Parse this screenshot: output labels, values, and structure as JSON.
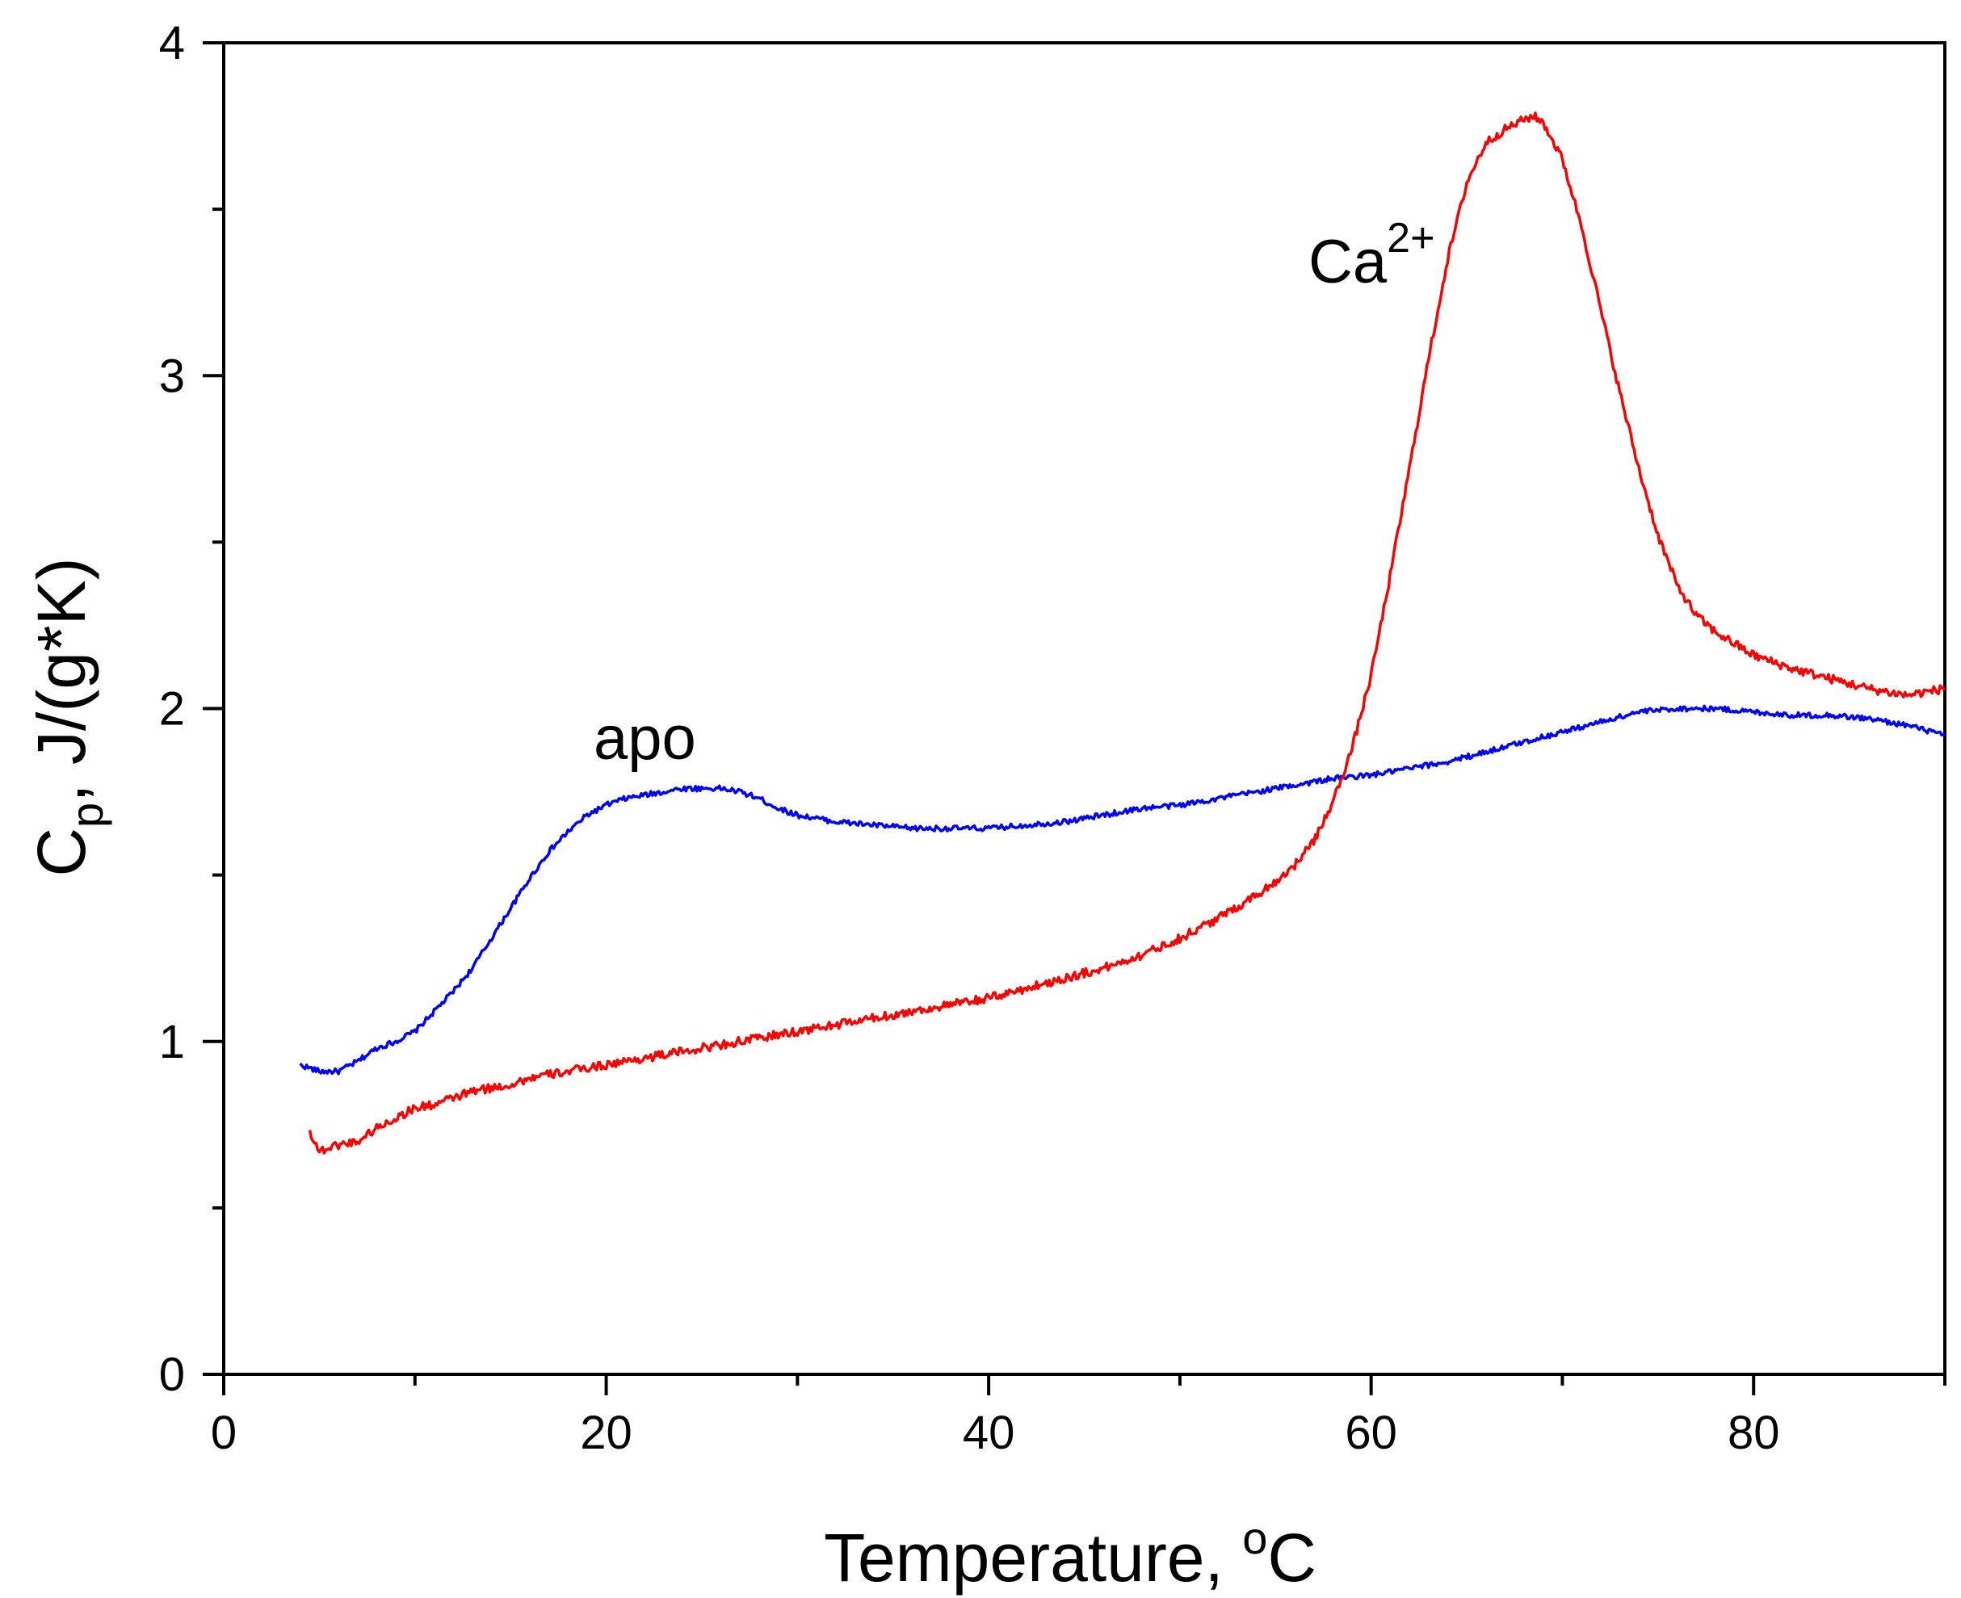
{
  "chart_data": {
    "type": "line",
    "xlabel": "Temperature, oC",
    "xlabel_main": "Temperature, ",
    "xlabel_sup": "o",
    "xlabel_end": "C",
    "ylabel": "Cp, J/(g*K)",
    "ylabel_main": "C",
    "ylabel_sub": "p",
    "ylabel_end": ", J/(g*K)",
    "xlim": [
      0,
      90
    ],
    "ylim": [
      0,
      4
    ],
    "xticks": [
      0,
      20,
      40,
      60,
      80
    ],
    "xticks_minor": [
      10,
      30,
      50,
      70,
      90
    ],
    "yticks": [
      0,
      1,
      2,
      3,
      4
    ],
    "yticks_minor": [
      0.5,
      1.5,
      2.5,
      3.5
    ],
    "grid": false,
    "annotations": [
      {
        "text": "apo",
        "x": 22.5,
        "y": 1.85,
        "series": "apo"
      },
      {
        "text": "Ca",
        "sup": "2+",
        "x": 63.5,
        "y": 3.2,
        "series": "Ca2+"
      }
    ],
    "series": [
      {
        "name": "apo",
        "color": "#0000ff",
        "noise": 0.008,
        "x": [
          4,
          5,
          6,
          7,
          8,
          9,
          10,
          11,
          12,
          13,
          14,
          15,
          16,
          17,
          18,
          19,
          20,
          21,
          22,
          23,
          24,
          25,
          26,
          27,
          28,
          29,
          30,
          32,
          34,
          36,
          38,
          40,
          42,
          44,
          46,
          48,
          50,
          52,
          54,
          56,
          58,
          60,
          62,
          64,
          66,
          68,
          70,
          72,
          74,
          76,
          78,
          80,
          82,
          84,
          86,
          88,
          90
        ],
        "y": [
          0.93,
          0.91,
          0.91,
          0.94,
          0.98,
          1.0,
          1.03,
          1.09,
          1.15,
          1.22,
          1.31,
          1.4,
          1.49,
          1.57,
          1.63,
          1.68,
          1.71,
          1.73,
          1.74,
          1.75,
          1.76,
          1.76,
          1.76,
          1.75,
          1.73,
          1.7,
          1.68,
          1.66,
          1.65,
          1.64,
          1.64,
          1.64,
          1.65,
          1.66,
          1.68,
          1.7,
          1.71,
          1.73,
          1.75,
          1.77,
          1.79,
          1.8,
          1.82,
          1.84,
          1.87,
          1.9,
          1.93,
          1.96,
          1.99,
          2.0,
          2.0,
          1.99,
          1.98,
          1.98,
          1.97,
          1.95,
          1.92
        ]
      },
      {
        "name": "Ca2+",
        "color": "#ff0000",
        "noise": 0.013,
        "x": [
          4.5,
          5,
          6,
          7,
          8,
          9,
          10,
          11,
          12,
          13,
          14,
          15,
          16,
          18,
          20,
          22,
          24,
          26,
          28,
          30,
          32,
          34,
          36,
          38,
          40,
          42,
          44,
          46,
          48,
          50,
          52,
          54,
          55,
          56,
          57,
          58,
          59,
          60,
          61,
          62,
          63,
          64,
          65,
          66,
          67,
          68,
          68.5,
          69,
          70,
          71,
          72,
          73,
          74,
          75,
          76,
          77,
          78,
          80,
          82,
          84,
          86,
          88,
          90
        ],
        "y": [
          0.73,
          0.67,
          0.69,
          0.7,
          0.74,
          0.77,
          0.8,
          0.81,
          0.83,
          0.85,
          0.86,
          0.87,
          0.89,
          0.91,
          0.93,
          0.95,
          0.97,
          0.99,
          1.01,
          1.03,
          1.05,
          1.07,
          1.09,
          1.11,
          1.13,
          1.16,
          1.19,
          1.22,
          1.26,
          1.31,
          1.37,
          1.44,
          1.48,
          1.53,
          1.6,
          1.72,
          1.88,
          2.1,
          2.4,
          2.72,
          3.05,
          3.35,
          3.58,
          3.7,
          3.74,
          3.77,
          3.78,
          3.76,
          3.65,
          3.45,
          3.2,
          2.95,
          2.72,
          2.52,
          2.37,
          2.28,
          2.23,
          2.16,
          2.12,
          2.09,
          2.06,
          2.04,
          2.06
        ]
      }
    ]
  }
}
